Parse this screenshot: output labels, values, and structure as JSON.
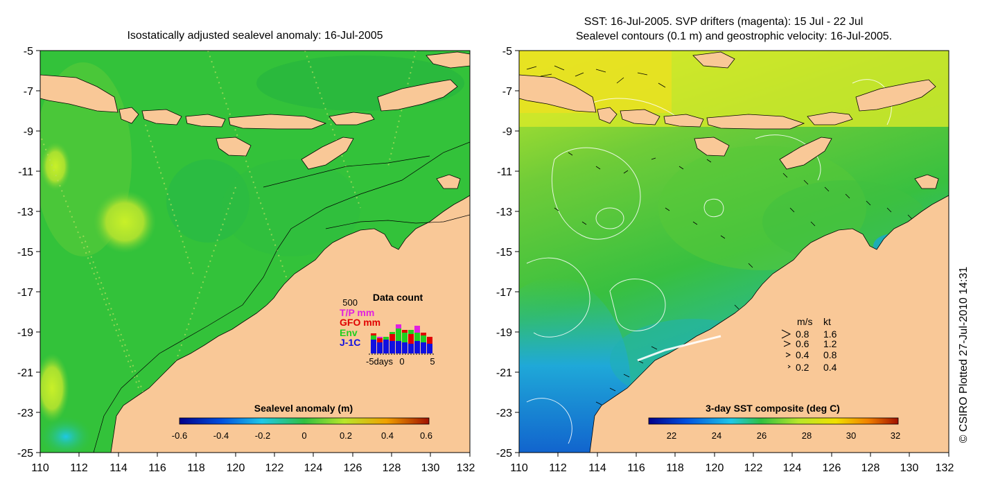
{
  "left_panel": {
    "title": "Isostatically adjusted sealevel anomaly: 16-Jul-2005",
    "x_ticks": [
      "110",
      "112",
      "114",
      "116",
      "118",
      "120",
      "122",
      "124",
      "126",
      "128",
      "130",
      "132"
    ],
    "y_ticks": [
      "-5",
      "-7",
      "-9",
      "-11",
      "-13",
      "-15",
      "-17",
      "-19",
      "-21",
      "-23",
      "-25"
    ],
    "colorbar": {
      "title": "Sealevel anomaly (m)",
      "ticks": [
        "-0.6",
        "-0.4",
        "-0.2",
        "0",
        "0.2",
        "0.4",
        "0.6"
      ]
    },
    "data_count": {
      "title": "Data count",
      "max_label": "500",
      "legend": [
        {
          "label": "T/P mm",
          "color": "#e020e0"
        },
        {
          "label": "GFO mm",
          "color": "#e00000"
        },
        {
          "label": "Env",
          "color": "#20d020"
        },
        {
          "label": "J-1C",
          "color": "#1010e0"
        }
      ],
      "x_label_start": "-5days",
      "x_label_mid": "0",
      "x_label_end": "5"
    }
  },
  "right_panel": {
    "title_line1": "SST: 16-Jul-2005. SVP drifters (magenta): 15 Jul - 22 Jul",
    "title_line2": "Sealevel contours (0.1 m) and geostrophic velocity: 16-Jul-2005.",
    "x_ticks": [
      "110",
      "112",
      "114",
      "116",
      "118",
      "120",
      "122",
      "124",
      "126",
      "128",
      "130",
      "132"
    ],
    "y_ticks": [
      "-5",
      "-7",
      "-9",
      "-11",
      "-13",
      "-15",
      "-17",
      "-19",
      "-21",
      "-23",
      "-25"
    ],
    "colorbar": {
      "title": "3-day SST composite (deg C)",
      "ticks": [
        "22",
        "24",
        "26",
        "28",
        "30",
        "32"
      ]
    },
    "velocity_legend": {
      "header_ms": "m/s",
      "header_kt": "kt",
      "rows": [
        {
          "ms": "0.8",
          "kt": "1.6"
        },
        {
          "ms": "0.6",
          "kt": "1.2"
        },
        {
          "ms": "0.4",
          "kt": "0.8"
        },
        {
          "ms": "0.2",
          "kt": "0.4"
        }
      ]
    }
  },
  "credit": "© CSIRO Plotted 27-Jul-2010 14:31",
  "colors": {
    "land": "#f9c897",
    "ocean_green": "#33c23a",
    "ocean_yellow": "#b8e62a",
    "sst_blue": "#1e90e0"
  }
}
